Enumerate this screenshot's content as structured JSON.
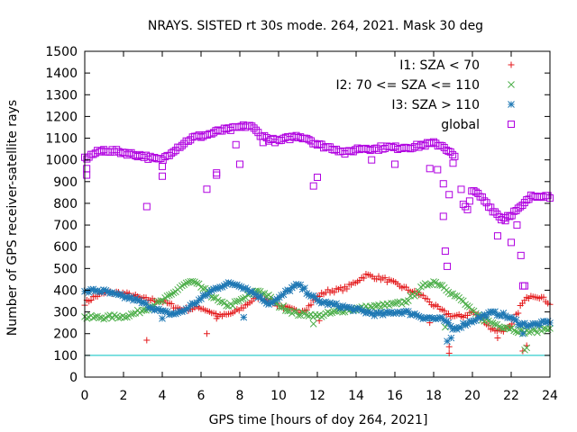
{
  "chart_data": {
    "type": "scatter",
    "title": "NRAYS. SISTED rt 30s mode. 264, 2021. Mask 30 deg",
    "xlabel": "GPS time [hours of doy 264, 2021]",
    "ylabel": "Number of GPS receiver-satellite rays",
    "xlim": [
      0,
      24
    ],
    "ylim": [
      0,
      1500
    ],
    "x_ticks": [
      "0",
      "2",
      "4",
      "6",
      "8",
      "10",
      "12",
      "14",
      "16",
      "18",
      "20",
      "22",
      "24"
    ],
    "y_ticks": [
      "0",
      "100",
      "200",
      "300",
      "400",
      "500",
      "600",
      "700",
      "800",
      "900",
      "1000",
      "1100",
      "1200",
      "1300",
      "1400",
      "1500"
    ],
    "grid": false,
    "legend_position": "top-right",
    "reference_line": {
      "y": 100,
      "color": "#00C0C0"
    },
    "series": [
      {
        "name": "I1: SZA < 70",
        "marker": "+",
        "color": "#E41A1C",
        "x": [
          0,
          0.5,
          1,
          1.5,
          2,
          2.5,
          3,
          3.5,
          4,
          4.5,
          5,
          5.5,
          6,
          6.5,
          7,
          7.5,
          8,
          8.5,
          9,
          9.5,
          10,
          10.5,
          11,
          11.5,
          12,
          12.5,
          13,
          13.5,
          14,
          14.5,
          15,
          15.5,
          16,
          16.5,
          17,
          17.5,
          18,
          18.5,
          19,
          19.5,
          20,
          20.5,
          21,
          21.5,
          22,
          22.5,
          23,
          23.5,
          24
        ],
        "y": [
          340,
          370,
          385,
          390,
          385,
          375,
          360,
          355,
          350,
          330,
          310,
          315,
          320,
          300,
          280,
          290,
          310,
          345,
          370,
          355,
          330,
          315,
          300,
          320,
          370,
          395,
          400,
          410,
          440,
          470,
          460,
          450,
          430,
          410,
          390,
          370,
          330,
          300,
          280,
          280,
          300,
          270,
          220,
          215,
          230,
          330,
          380,
          370,
          340
        ],
        "outliers": [
          [
            3.2,
            170
          ],
          [
            6.3,
            200
          ],
          [
            6.8,
            270
          ],
          [
            12.1,
            260
          ],
          [
            17.8,
            250
          ],
          [
            18.8,
            110
          ],
          [
            18.8,
            140
          ],
          [
            21.3,
            180
          ],
          [
            22.6,
            120
          ],
          [
            22.8,
            145
          ]
        ]
      },
      {
        "name": "I2: 70 <= SZA <= 110",
        "marker": "x",
        "color": "#4DAF4A",
        "x": [
          0,
          0.5,
          1,
          1.5,
          2,
          2.5,
          3,
          3.5,
          4,
          4.5,
          5,
          5.5,
          6,
          6.5,
          7,
          7.5,
          8,
          8.5,
          9,
          9.5,
          10,
          10.5,
          11,
          11.5,
          12,
          12.5,
          13,
          13.5,
          14,
          14.5,
          15,
          15.5,
          16,
          16.5,
          17,
          17.5,
          18,
          18.5,
          19,
          19.5,
          20,
          20.5,
          21,
          21.5,
          22,
          22.5,
          23,
          23.5,
          24
        ],
        "y": [
          275,
          275,
          275,
          278,
          280,
          290,
          310,
          330,
          350,
          380,
          420,
          440,
          415,
          380,
          340,
          330,
          350,
          380,
          400,
          370,
          330,
          310,
          290,
          290,
          280,
          290,
          300,
          310,
          315,
          320,
          325,
          330,
          335,
          345,
          380,
          420,
          440,
          420,
          380,
          350,
          300,
          270,
          250,
          235,
          225,
          210,
          210,
          215,
          230
        ],
        "outliers": [
          [
            11.8,
            245
          ],
          [
            18.6,
            230
          ],
          [
            22.7,
            125
          ],
          [
            22.8,
            135
          ]
        ]
      },
      {
        "name": "I3: SZA > 110",
        "marker": "*",
        "color": "#1F78B4",
        "x": [
          0,
          0.5,
          1,
          1.5,
          2,
          2.5,
          3,
          3.5,
          4,
          4.5,
          5,
          5.5,
          6,
          6.5,
          7,
          7.5,
          8,
          8.5,
          9,
          9.5,
          10,
          10.5,
          11,
          11.5,
          12,
          12.5,
          13,
          13.5,
          14,
          14.5,
          15,
          15.5,
          16,
          16.5,
          17,
          17.5,
          18,
          18.5,
          19,
          19.5,
          20,
          20.5,
          21,
          21.5,
          22,
          22.5,
          23,
          23.5,
          24
        ],
        "y": [
          390,
          400,
          395,
          380,
          370,
          360,
          340,
          320,
          300,
          290,
          300,
          330,
          360,
          395,
          420,
          430,
          425,
          400,
          370,
          340,
          360,
          400,
          425,
          390,
          350,
          340,
          330,
          320,
          310,
          300,
          290,
          290,
          300,
          300,
          290,
          275,
          270,
          265,
          220,
          240,
          260,
          280,
          295,
          290,
          270,
          245,
          240,
          245,
          255
        ],
        "outliers": [
          [
            4,
            270
          ],
          [
            8.2,
            275
          ],
          [
            18.7,
            165
          ],
          [
            18.9,
            180
          ],
          [
            22.6,
            200
          ]
        ]
      },
      {
        "name": "global",
        "marker": "square",
        "color": "#B000E0",
        "x": [
          0,
          0.5,
          1,
          1.5,
          2,
          2.5,
          3,
          3.5,
          4,
          4.5,
          5,
          5.5,
          6,
          6.5,
          7,
          7.5,
          8,
          8.5,
          9,
          9.5,
          10,
          10.5,
          11,
          11.5,
          12,
          12.5,
          13,
          13.5,
          14,
          14.5,
          15,
          15.5,
          16,
          16.5,
          17,
          17.5,
          18,
          18.5,
          19,
          19.25,
          19.5,
          19.75,
          20,
          20.5,
          21,
          21.5,
          22,
          22.5,
          23,
          23.5,
          24
        ],
        "y": [
          1005,
          1030,
          1045,
          1040,
          1035,
          1025,
          1020,
          1005,
          1000,
          1040,
          1070,
          1100,
          1110,
          1120,
          1135,
          1140,
          1150,
          1160,
          1120,
          1095,
          1085,
          1100,
          1110,
          1100,
          1070,
          1060,
          1050,
          1030,
          1050,
          1055,
          1050,
          1060,
          1055,
          1060,
          1060,
          1070,
          1075,
          1065,
          1020,
          1000,
          790,
          780,
          860,
          825,
          775,
          730,
          750,
          780,
          830,
          840,
          830
        ],
        "outliers": [
          [
            0.1,
            960
          ],
          [
            0.1,
            930
          ],
          [
            3.2,
            785
          ],
          [
            4.0,
            970
          ],
          [
            4.0,
            925
          ],
          [
            6.3,
            865
          ],
          [
            6.8,
            930
          ],
          [
            6.8,
            940
          ],
          [
            7.8,
            1070
          ],
          [
            8.0,
            980
          ],
          [
            9.2,
            1080
          ],
          [
            11.8,
            880
          ],
          [
            12.0,
            920
          ],
          [
            14.8,
            1000
          ],
          [
            16.0,
            980
          ],
          [
            17.8,
            960
          ],
          [
            18.2,
            955
          ],
          [
            18.5,
            890
          ],
          [
            18.5,
            740
          ],
          [
            18.6,
            580
          ],
          [
            18.7,
            510
          ],
          [
            18.8,
            840
          ],
          [
            19.0,
            985
          ],
          [
            21.3,
            650
          ],
          [
            21.7,
            720
          ],
          [
            22.0,
            620
          ],
          [
            22.3,
            700
          ],
          [
            22.5,
            560
          ],
          [
            22.6,
            420
          ],
          [
            22.7,
            420
          ]
        ]
      }
    ]
  }
}
